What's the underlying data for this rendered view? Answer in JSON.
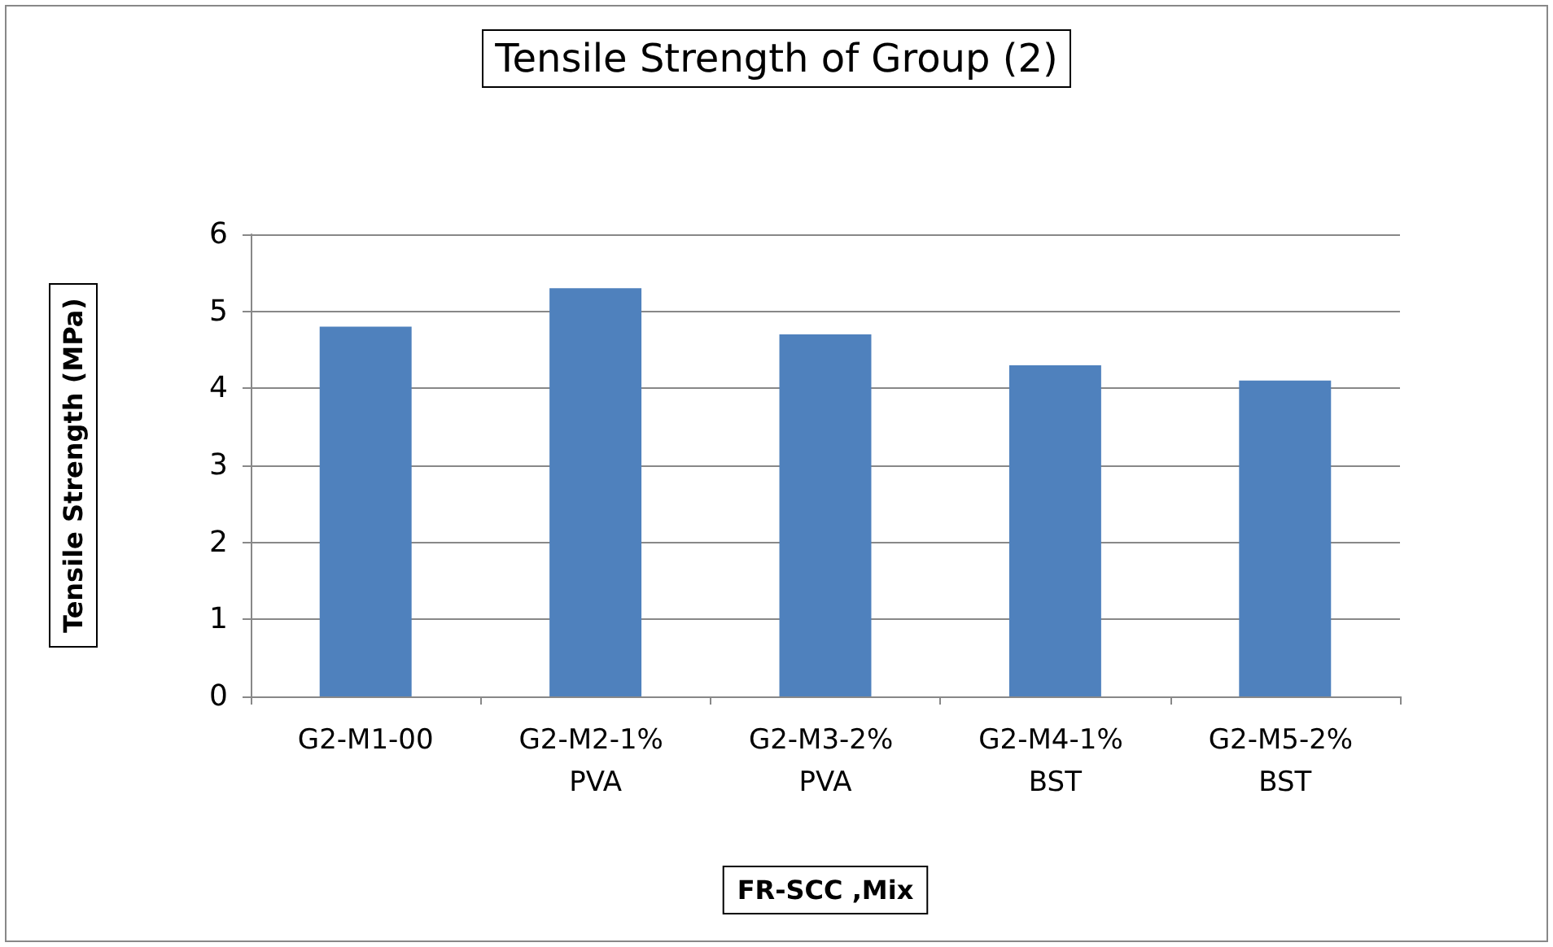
{
  "chart_data": {
    "type": "bar",
    "title": "Tensile Strength of Group (2)",
    "xlabel": "FR-SCC ,Mix",
    "ylabel": "Tensile Strength (MPa)",
    "categories": [
      "G2-M1-00",
      "G2-M2-1% PVA",
      "G2-M3-2% PVA",
      "G2-M4-1% BST",
      "G2-M5-2% BST"
    ],
    "values": [
      4.8,
      5.3,
      4.7,
      4.3,
      4.1
    ],
    "color": "#4f81bd",
    "ylim": [
      0,
      6
    ],
    "yticks": [
      0,
      1,
      2,
      3,
      4,
      5,
      6
    ],
    "grid": "y"
  }
}
